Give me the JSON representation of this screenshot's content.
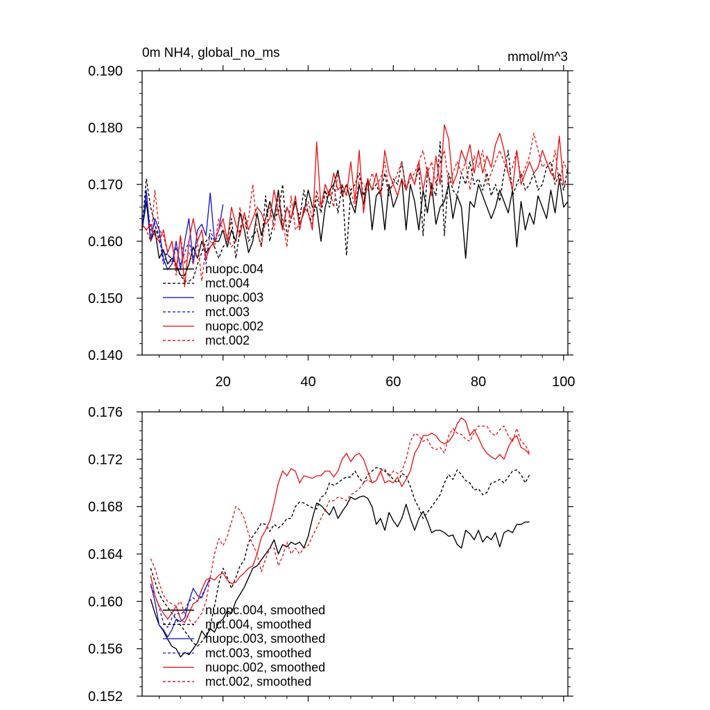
{
  "chart_data": [
    {
      "type": "line",
      "title": "0m NH4, global_no_ms",
      "units": "mmol/m^3",
      "xlim": [
        1,
        101
      ],
      "ylim": [
        0.14,
        0.19
      ],
      "xticks": [
        20,
        40,
        60,
        80,
        100
      ],
      "xtick_labels": [
        "20",
        "40",
        "60",
        "80",
        "100"
      ],
      "yticks": [
        0.14,
        0.15,
        0.16,
        0.17,
        0.18,
        0.19
      ],
      "ytick_labels": [
        "0.140",
        "0.150",
        "0.160",
        "0.170",
        "0.180",
        "0.190"
      ],
      "legend_position": "lower-left",
      "series": [
        {
          "name": "nuopc.004",
          "color": "#000000",
          "dash": "solid",
          "x_start": 1,
          "values": [
            0.162,
            0.167,
            0.16,
            0.162,
            0.157,
            0.1585,
            0.156,
            0.157,
            0.156,
            0.154,
            0.154,
            0.156,
            0.159,
            0.157,
            0.16,
            0.158,
            0.159,
            0.16,
            0.16,
            0.162,
            0.159,
            0.162,
            0.16,
            0.165,
            0.162,
            0.158,
            0.16,
            0.165,
            0.161,
            0.164,
            0.167,
            0.164,
            0.169,
            0.162,
            0.166,
            0.164,
            0.167,
            0.163,
            0.165,
            0.169,
            0.166,
            0.166,
            0.16,
            0.166,
            0.169,
            0.17,
            0.1725,
            0.168,
            0.17,
            0.167,
            0.165,
            0.17,
            0.1665,
            0.171,
            0.162,
            0.168,
            0.169,
            0.162,
            0.17,
            0.166,
            0.168,
            0.171,
            0.162,
            0.17,
            0.167,
            0.162,
            0.169,
            0.165,
            0.17,
            0.163,
            0.166,
            0.167,
            0.17,
            0.164,
            0.168,
            0.166,
            0.157,
            0.167,
            0.166,
            0.17,
            0.168,
            0.166,
            0.164,
            0.166,
            0.169,
            0.167,
            0.165,
            0.169,
            0.159,
            0.167,
            0.162,
            0.165,
            0.163,
            0.168,
            0.166,
            0.164,
            0.169,
            0.165,
            0.171,
            0.166,
            0.167
          ]
        },
        {
          "name": "mct.004",
          "color": "#000000",
          "dash": "dashed",
          "x_start": 1,
          "values": [
            0.1625,
            0.171,
            0.166,
            0.163,
            0.16,
            0.158,
            0.1575,
            0.157,
            0.1555,
            0.154,
            0.153,
            0.153,
            0.1535,
            0.156,
            0.158,
            0.16,
            0.161,
            0.159,
            0.157,
            0.159,
            0.16,
            0.164,
            0.157,
            0.162,
            0.165,
            0.16,
            0.161,
            0.162,
            0.159,
            0.168,
            0.16,
            0.164,
            0.165,
            0.17,
            0.161,
            0.164,
            0.167,
            0.164,
            0.169,
            0.165,
            0.163,
            0.168,
            0.165,
            0.169,
            0.166,
            0.17,
            0.165,
            0.17,
            0.1575,
            0.169,
            0.17,
            0.172,
            0.168,
            0.171,
            0.169,
            0.17,
            0.168,
            0.172,
            0.168,
            0.171,
            0.17,
            0.174,
            0.169,
            0.172,
            0.17,
            0.173,
            0.161,
            0.172,
            0.17,
            0.168,
            0.1775,
            0.161,
            0.172,
            0.169,
            0.168,
            0.172,
            0.17,
            0.174,
            0.17,
            0.171,
            0.169,
            0.172,
            0.168,
            0.17,
            0.167,
            0.172,
            0.176,
            0.168,
            0.17,
            0.172,
            0.169,
            0.17,
            0.172,
            0.169,
            0.17,
            0.173,
            0.174,
            0.17,
            0.172,
            0.169,
            0.173
          ]
        },
        {
          "name": "nuopc.003",
          "color": "#1c1cd4",
          "dash": "solid",
          "x_start": 1,
          "values": [
            0.162,
            0.169,
            0.16,
            0.164,
            0.162,
            0.157,
            0.155,
            0.156,
            0.16,
            0.155,
            0.16,
            0.164,
            0.156,
            0.162,
            0.163,
            0.161,
            0.1685,
            0.16,
            0.162,
            0.1665
          ]
        },
        {
          "name": "mct.003",
          "color": "#1c1cd4",
          "dash": "dashed",
          "x_start": 1,
          "values": [
            0.162,
            0.168,
            0.162,
            0.163,
            0.161,
            0.156,
            0.158,
            0.156,
            0.159,
            0.156,
            0.158,
            0.16,
            0.157,
            0.16,
            0.162,
            0.156,
            0.162,
            0.16,
            0.161,
            0.162
          ]
        },
        {
          "name": "nuopc.002",
          "color": "#e8191b",
          "dash": "solid",
          "x_start": 1,
          "values": [
            0.163,
            0.162,
            0.163,
            0.161,
            0.16,
            0.162,
            0.158,
            0.16,
            0.155,
            0.161,
            0.152,
            0.16,
            0.164,
            0.16,
            0.162,
            0.157,
            0.159,
            0.16,
            0.162,
            0.164,
            0.16,
            0.166,
            0.163,
            0.161,
            0.165,
            0.162,
            0.164,
            0.166,
            0.165,
            0.163,
            0.164,
            0.169,
            0.165,
            0.162,
            0.166,
            0.164,
            0.168,
            0.162,
            0.166,
            0.165,
            0.162,
            0.1775,
            0.166,
            0.17,
            0.168,
            0.172,
            0.169,
            0.17,
            0.168,
            0.174,
            0.167,
            0.176,
            0.165,
            0.171,
            0.169,
            0.172,
            0.168,
            0.176,
            0.172,
            0.17,
            0.168,
            0.171,
            0.169,
            0.172,
            0.17,
            0.174,
            0.169,
            0.173,
            0.168,
            0.175,
            0.17,
            0.1805,
            0.178,
            0.17,
            0.172,
            0.176,
            0.174,
            0.177,
            0.172,
            0.176,
            0.172,
            0.175,
            0.173,
            0.177,
            0.179,
            0.176,
            0.172,
            0.169,
            0.176,
            0.17,
            0.172,
            0.174,
            0.172,
            0.173,
            0.176,
            0.174,
            0.172,
            0.171,
            0.1785,
            0.17,
            0.17
          ]
        },
        {
          "name": "mct.002",
          "color": "#e8191b",
          "dash": "dashed",
          "x_start": 1,
          "values": [
            0.163,
            0.162,
            0.16,
            0.169,
            0.162,
            0.161,
            0.158,
            0.16,
            0.154,
            0.161,
            0.156,
            0.158,
            0.156,
            0.16,
            0.153,
            0.159,
            0.16,
            0.159,
            0.164,
            0.162,
            0.161,
            0.159,
            0.16,
            0.166,
            0.162,
            0.164,
            0.17,
            0.162,
            0.159,
            0.164,
            0.166,
            0.162,
            0.168,
            0.164,
            0.159,
            0.168,
            0.162,
            0.163,
            0.165,
            0.167,
            0.164,
            0.169,
            0.166,
            0.168,
            0.169,
            0.166,
            0.172,
            0.168,
            0.17,
            0.169,
            0.166,
            0.171,
            0.17,
            0.169,
            0.172,
            0.17,
            0.171,
            0.174,
            0.169,
            0.17,
            0.172,
            0.174,
            0.169,
            0.171,
            0.172,
            0.174,
            0.176,
            0.172,
            0.174,
            0.17,
            0.174,
            0.176,
            0.17,
            0.172,
            0.174,
            0.172,
            0.174,
            0.169,
            0.175,
            0.173,
            0.176,
            0.17,
            0.172,
            0.174,
            0.176,
            0.174,
            0.172,
            0.173,
            0.176,
            0.171,
            0.173,
            0.175,
            0.179,
            0.176,
            0.173,
            0.174,
            0.172,
            0.176,
            0.17,
            0.174,
            0.172
          ]
        }
      ]
    },
    {
      "type": "line",
      "title": "",
      "units": "",
      "xlim": [
        1,
        101
      ],
      "ylim": [
        0.152,
        0.176
      ],
      "xticks": [
        20,
        40,
        60,
        80,
        100
      ],
      "xtick_labels": [
        "",
        "",
        "",
        "",
        ""
      ],
      "yticks": [
        0.152,
        0.156,
        0.16,
        0.164,
        0.168,
        0.172,
        0.176
      ],
      "ytick_labels": [
        "0.152",
        "0.156",
        "0.160",
        "0.164",
        "0.168",
        "0.172",
        "0.176"
      ],
      "legend_position": "lower-left",
      "series": [
        {
          "name": "nuopc.004, smoothed",
          "color": "#000000",
          "dash": "solid",
          "x_start": 3,
          "values": [
            0.1602,
            0.159,
            0.158,
            0.1575,
            0.1568,
            0.1562,
            0.156,
            0.1553,
            0.1557,
            0.1555,
            0.156,
            0.1565,
            0.1575,
            0.157,
            0.1577,
            0.1574,
            0.1582,
            0.1585,
            0.1592,
            0.159,
            0.16,
            0.1606,
            0.1612,
            0.162,
            0.1628,
            0.163,
            0.1635,
            0.164,
            0.1645,
            0.1652,
            0.164,
            0.1648,
            0.1646,
            0.165,
            0.1648,
            0.165,
            0.1645,
            0.1655,
            0.167,
            0.1683,
            0.1681,
            0.1677,
            0.1673,
            0.168,
            0.167,
            0.1676,
            0.1681,
            0.1688,
            0.1686,
            0.1688,
            0.1689,
            0.1687,
            0.168,
            0.1665,
            0.167,
            0.166,
            0.1675,
            0.1668,
            0.1663,
            0.167,
            0.1682,
            0.167,
            0.166,
            0.167,
            0.1676,
            0.1668,
            0.1658,
            0.166,
            0.166,
            0.1658,
            0.1655,
            0.1656,
            0.1648,
            0.1645,
            0.166,
            0.1657,
            0.1652,
            0.166,
            0.165,
            0.1655,
            0.1652,
            0.1658,
            0.1646,
            0.1658,
            0.166,
            0.1658,
            0.1665,
            0.1665,
            0.1667,
            0.1667
          ]
        },
        {
          "name": "mct.004, smoothed",
          "color": "#000000",
          "dash": "dashed",
          "x_start": 3,
          "values": [
            0.1628,
            0.1617,
            0.1606,
            0.16,
            0.1595,
            0.159,
            0.1585,
            0.158,
            0.1575,
            0.157,
            0.1565,
            0.1562,
            0.1566,
            0.1571,
            0.158,
            0.1596,
            0.1615,
            0.1628,
            0.162,
            0.1611,
            0.162,
            0.163,
            0.1635,
            0.165,
            0.1655,
            0.166,
            0.1666,
            0.1665,
            0.1659,
            0.1665,
            0.1662,
            0.1665,
            0.167,
            0.167,
            0.168,
            0.1684,
            0.1683,
            0.1681,
            0.1679,
            0.1678,
            0.1688,
            0.169,
            0.17,
            0.1698,
            0.17,
            0.1703,
            0.1705,
            0.1705,
            0.171,
            0.1704,
            0.17,
            0.1707,
            0.171,
            0.1713,
            0.1712,
            0.171,
            0.1707,
            0.1703,
            0.17,
            0.1708,
            0.1706,
            0.1697,
            0.1686,
            0.1679,
            0.167,
            0.1675,
            0.168,
            0.1685,
            0.169,
            0.17,
            0.1707,
            0.1703,
            0.1711,
            0.1707,
            0.1702,
            0.17,
            0.1694,
            0.1695,
            0.169,
            0.1692,
            0.17,
            0.1701,
            0.1703,
            0.17,
            0.1705,
            0.171,
            0.1711,
            0.1707,
            0.17,
            0.1707
          ]
        },
        {
          "name": "nuopc.003, smoothed",
          "color": "#1c1cd4",
          "dash": "solid",
          "x_start": 3,
          "values": [
            0.1615,
            0.16,
            0.158,
            0.1576,
            0.157,
            0.1576,
            0.1585,
            0.1583,
            0.1586,
            0.16,
            0.1611,
            0.1605,
            0.1603,
            0.1612,
            0.162
          ]
        },
        {
          "name": "mct.003, smoothed",
          "color": "#1c1cd4",
          "dash": "dashed",
          "x_start": 3,
          "values": [
            0.1613,
            0.1605,
            0.1595,
            0.1582,
            0.1578,
            0.1586,
            0.159,
            0.1589,
            0.1592,
            0.16,
            0.1603,
            0.16,
            0.1605,
            0.1612,
            0.1618
          ]
        },
        {
          "name": "nuopc.002, smoothed",
          "color": "#e8191b",
          "dash": "solid",
          "x_start": 3,
          "values": [
            0.1622,
            0.1605,
            0.1596,
            0.159,
            0.1585,
            0.159,
            0.1596,
            0.1585,
            0.1582,
            0.159,
            0.1598,
            0.16,
            0.161,
            0.1618,
            0.162,
            0.1618,
            0.1622,
            0.1624,
            0.1618,
            0.1615,
            0.1616,
            0.1621,
            0.1624,
            0.1628,
            0.163,
            0.164,
            0.1654,
            0.166,
            0.1668,
            0.1683,
            0.17,
            0.171,
            0.1706,
            0.1712,
            0.171,
            0.17,
            0.1706,
            0.1705,
            0.1704,
            0.1706,
            0.1706,
            0.171,
            0.171,
            0.1705,
            0.171,
            0.172,
            0.1725,
            0.1718,
            0.1723,
            0.1725,
            0.172,
            0.171,
            0.17,
            0.1702,
            0.171,
            0.17,
            0.1702,
            0.17,
            0.1705,
            0.1697,
            0.1703,
            0.171,
            0.1725,
            0.1731,
            0.174,
            0.174,
            0.1742,
            0.174,
            0.1735,
            0.1733,
            0.1735,
            0.174,
            0.175,
            0.1755,
            0.1752,
            0.174,
            0.1745,
            0.1738,
            0.173,
            0.1725,
            0.1722,
            0.172,
            0.1724,
            0.172,
            0.173,
            0.1737,
            0.174,
            0.173,
            0.1728,
            0.1724
          ]
        },
        {
          "name": "mct.002, smoothed",
          "color": "#e8191b",
          "dash": "dashed",
          "x_start": 3,
          "values": [
            0.1636,
            0.1628,
            0.1615,
            0.1605,
            0.16,
            0.1598,
            0.1596,
            0.16,
            0.159,
            0.1585,
            0.158,
            0.1585,
            0.159,
            0.16,
            0.162,
            0.164,
            0.1653,
            0.1647,
            0.1655,
            0.1667,
            0.168,
            0.1677,
            0.167,
            0.1657,
            0.1648,
            0.164,
            0.1625,
            0.1636,
            0.1645,
            0.1645,
            0.163,
            0.1638,
            0.165,
            0.164,
            0.1645,
            0.164,
            0.1645,
            0.1647,
            0.1655,
            0.1662,
            0.167,
            0.1677,
            0.1685,
            0.1685,
            0.1688,
            0.1687,
            0.1685,
            0.169,
            0.1692,
            0.1695,
            0.17,
            0.1703,
            0.17,
            0.1702,
            0.171,
            0.1712,
            0.1705,
            0.171,
            0.1708,
            0.171,
            0.172,
            0.1735,
            0.1742,
            0.174,
            0.1735,
            0.1737,
            0.173,
            0.1728,
            0.173,
            0.1725,
            0.174,
            0.1746,
            0.1742,
            0.1741,
            0.1737,
            0.1735,
            0.1743,
            0.1748,
            0.1748,
            0.1748,
            0.1742,
            0.174,
            0.1745,
            0.1748,
            0.174,
            0.1735,
            0.1746,
            0.1735,
            0.1732,
            0.1725
          ]
        }
      ]
    }
  ]
}
